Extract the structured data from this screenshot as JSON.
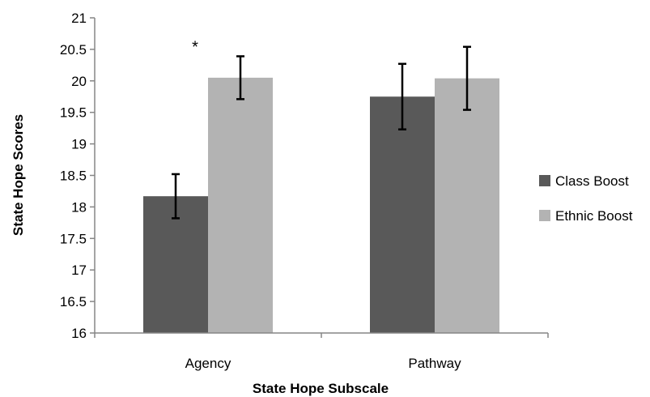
{
  "chart_data": {
    "type": "bar",
    "title": "",
    "xlabel": "State Hope Subscale",
    "ylabel": "State Hope Scores",
    "categories": [
      "Agency",
      "Pathway"
    ],
    "ylim": [
      16,
      21
    ],
    "yticks": [
      16,
      16.5,
      17,
      17.5,
      18,
      18.5,
      19,
      19.5,
      20,
      20.5,
      21
    ],
    "ytick_labels": [
      "16",
      "16.5",
      "17",
      "17.5",
      "18",
      "18.5",
      "19",
      "19.5",
      "20",
      "20.5",
      "21"
    ],
    "series": [
      {
        "name": "Class Boost",
        "color": "#595959",
        "values": [
          18.17,
          19.75
        ],
        "error_low": [
          17.82,
          19.23
        ],
        "error_high": [
          18.52,
          20.27
        ]
      },
      {
        "name": "Ethnic Boost",
        "color": "#b3b3b3",
        "values": [
          20.05,
          20.04
        ],
        "error_low": [
          19.71,
          19.54
        ],
        "error_high": [
          20.39,
          20.54
        ]
      }
    ],
    "annotations": [
      {
        "text": "*",
        "category": "Agency",
        "series": "Ethnic Boost"
      }
    ],
    "legend_position": "right",
    "grid": false
  }
}
